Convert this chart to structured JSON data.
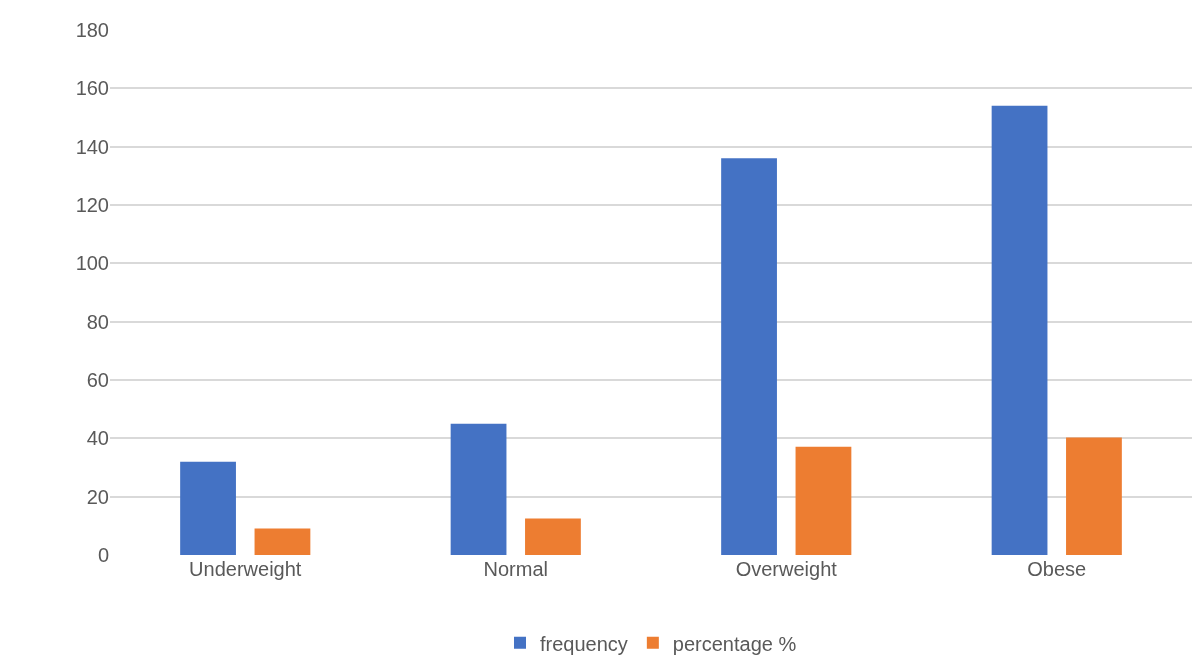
{
  "chart_data": {
    "type": "bar",
    "categories": [
      "Underweight",
      "Normal",
      "Overweight",
      "Obese"
    ],
    "series": [
      {
        "name": "frequency",
        "color": "#4472c4",
        "values": [
          32,
          45,
          136,
          154
        ]
      },
      {
        "name": "percentage %",
        "color": "#ed7d31",
        "values": [
          9.1,
          12.5,
          37.1,
          40.3
        ]
      }
    ],
    "ylim": [
      0,
      180
    ],
    "yticks": [
      0,
      20,
      40,
      60,
      80,
      100,
      120,
      140,
      160,
      180
    ],
    "grid": "y",
    "legend": "bottom"
  }
}
